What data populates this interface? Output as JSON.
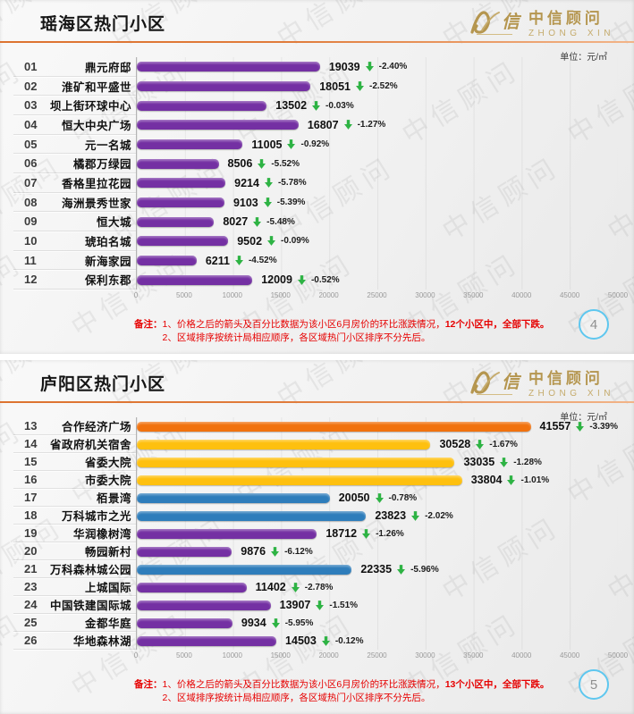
{
  "watermark": "中信顾问",
  "logo": {
    "cn": "中信顾问",
    "en": "ZHONG XIN"
  },
  "colors": {
    "purple": "#7430A3",
    "orange": "#F1720E",
    "yellow": "#FEC00F",
    "blue": "#2E7DBB",
    "arrow_green": "#2EB344",
    "accent_gold": "#B5964F",
    "note_red": "#E60000",
    "header_line_orange": "#DD7330",
    "page_circle_blue": "#5EC7EF"
  },
  "panels": [
    {
      "title": "瑶海区热门小区",
      "unit": "单位：元/㎡",
      "page": "4",
      "notes": {
        "label": "备注：",
        "line1": "1、价格之后的箭头及百分比数据为该小区6月房价的环比涨跌情况，",
        "line1_bold": "12个小区中，全部下跌。",
        "line2": "2、区域排序按统计局相应顺序，各区域热门小区排序不分先后。"
      }
    },
    {
      "title": "庐阳区热门小区",
      "unit": "单位：元/㎡",
      "page": "5",
      "notes": {
        "label": "备注：",
        "line1": "1、价格之后的箭头及百分比数据为该小区6月房价的环比涨跌情况，",
        "line1_bold": "13个小区中，全部下跌。",
        "line2": "2、区域排序按统计局相应顺序，各区域热门小区排序不分先后。"
      }
    }
  ],
  "chart_data": [
    {
      "type": "bar",
      "orientation": "horizontal",
      "title": "瑶海区热门小区",
      "unit": "元/㎡",
      "xlim": [
        0,
        50000
      ],
      "x_ticks": [
        "0",
        "5000",
        "10000",
        "15000",
        "20000",
        "25000",
        "30000",
        "35000",
        "40000",
        "45000",
        "50000"
      ],
      "grid": true,
      "rank_labels": [
        "01",
        "02",
        "03",
        "04",
        "05",
        "06",
        "07",
        "08",
        "09",
        "10",
        "11",
        "12"
      ],
      "categories": [
        "鼎元府邸",
        "淮矿和平盛世",
        "坝上街环球中心",
        "恒大中央广场",
        "元一名城",
        "橘郡万绿园",
        "香格里拉花园",
        "海洲景秀世家",
        "恒大城",
        "琥珀名城",
        "新海家园",
        "保利东郡"
      ],
      "values": [
        19039,
        18051,
        13502,
        16807,
        11005,
        8506,
        9214,
        9103,
        8027,
        9502,
        6211,
        12009
      ],
      "change_labels": [
        "-2.40%",
        "-2.52%",
        "-0.03%",
        "-1.27%",
        "-0.92%",
        "-5.52%",
        "-5.78%",
        "-5.39%",
        "-5.48%",
        "-0.09%",
        "-4.52%",
        "-0.52%"
      ],
      "bar_colors": [
        "purple",
        "purple",
        "purple",
        "purple",
        "purple",
        "purple",
        "purple",
        "purple",
        "purple",
        "purple",
        "purple",
        "purple"
      ]
    },
    {
      "type": "bar",
      "orientation": "horizontal",
      "title": "庐阳区热门小区",
      "unit": "元/㎡",
      "xlim": [
        0,
        50000
      ],
      "x_ticks": [
        "0",
        "5000",
        "10000",
        "15000",
        "20000",
        "25000",
        "30000",
        "35000",
        "40000",
        "45000",
        "50000"
      ],
      "grid": true,
      "rank_labels": [
        "13",
        "14",
        "15",
        "16",
        "17",
        "18",
        "19",
        "20",
        "21",
        "23",
        "24",
        "25",
        "26"
      ],
      "categories": [
        "合作经济广场",
        "省政府机关宿舍",
        "省委大院",
        "市委大院",
        "栢景湾",
        "万科城市之光",
        "华润橡树湾",
        "畅园新村",
        "万科森林城公园",
        "上城国际",
        "中国铁建国际城",
        "金都华庭",
        "华地森林湖"
      ],
      "values": [
        41557,
        30528,
        33035,
        33804,
        20050,
        23823,
        18712,
        9876,
        22335,
        11402,
        13907,
        9934,
        14503
      ],
      "change_labels": [
        "-3.39%",
        "-1.67%",
        "-1.28%",
        "-1.01%",
        "-0.78%",
        "-2.02%",
        "-1.26%",
        "-6.12%",
        "-5.96%",
        "-2.78%",
        "-1.51%",
        "-5.95%",
        "-0.12%"
      ],
      "bar_colors": [
        "orange",
        "yellow",
        "yellow",
        "yellow",
        "blue",
        "blue",
        "purple",
        "purple",
        "blue",
        "purple",
        "purple",
        "purple",
        "purple"
      ]
    }
  ]
}
